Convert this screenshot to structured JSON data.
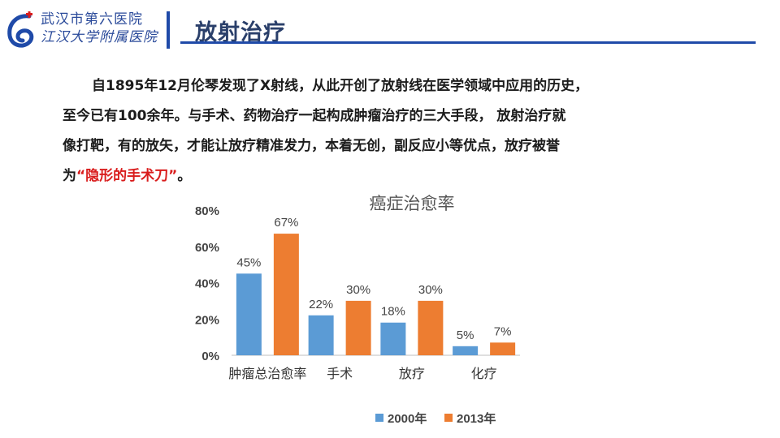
{
  "header": {
    "hospital_line1": "武汉市第六医院",
    "hospital_line2": "江汉大学附属医院",
    "title": "放射治疗",
    "accent_color": "#1f4aa8",
    "logo_icon": "hospital-logo-icon"
  },
  "intro": {
    "line1": "自1895年12月伦琴发现了X射线，从此开创了放射线在医学领域中应用的历史，",
    "line2": "至今已有100余年。与手术、药物治疗一起构成肿瘤治疗的三大手段， 放射治疗就",
    "line3": "像打靶，有的放矢，才能让放疗精准发力，本着无创，副反应小等优点，放疗被誉",
    "line4_prefix": "为",
    "line4_highlight": "“隐形的手术刀”",
    "line4_suffix": "。",
    "highlight_color": "#d91c1c"
  },
  "chart_data": {
    "type": "bar",
    "title": "癌症治愈率",
    "categories": [
      "肿瘤总治愈率",
      "手术",
      "放疗",
      "化疗"
    ],
    "series": [
      {
        "name": "2000年",
        "values": [
          45,
          22,
          18,
          5
        ],
        "color": "#5b9bd5"
      },
      {
        "name": "2013年",
        "values": [
          67,
          30,
          30,
          7
        ],
        "color": "#ed7d31"
      }
    ],
    "ylim": [
      0,
      80
    ],
    "yticks": [
      "0%",
      "20%",
      "40%",
      "60%",
      "80%"
    ],
    "data_labels": [
      [
        "45%",
        "22%",
        "18%",
        "5%"
      ],
      [
        "67%",
        "30%",
        "30%",
        "7%"
      ]
    ],
    "grid": false,
    "legend": "bottom"
  }
}
